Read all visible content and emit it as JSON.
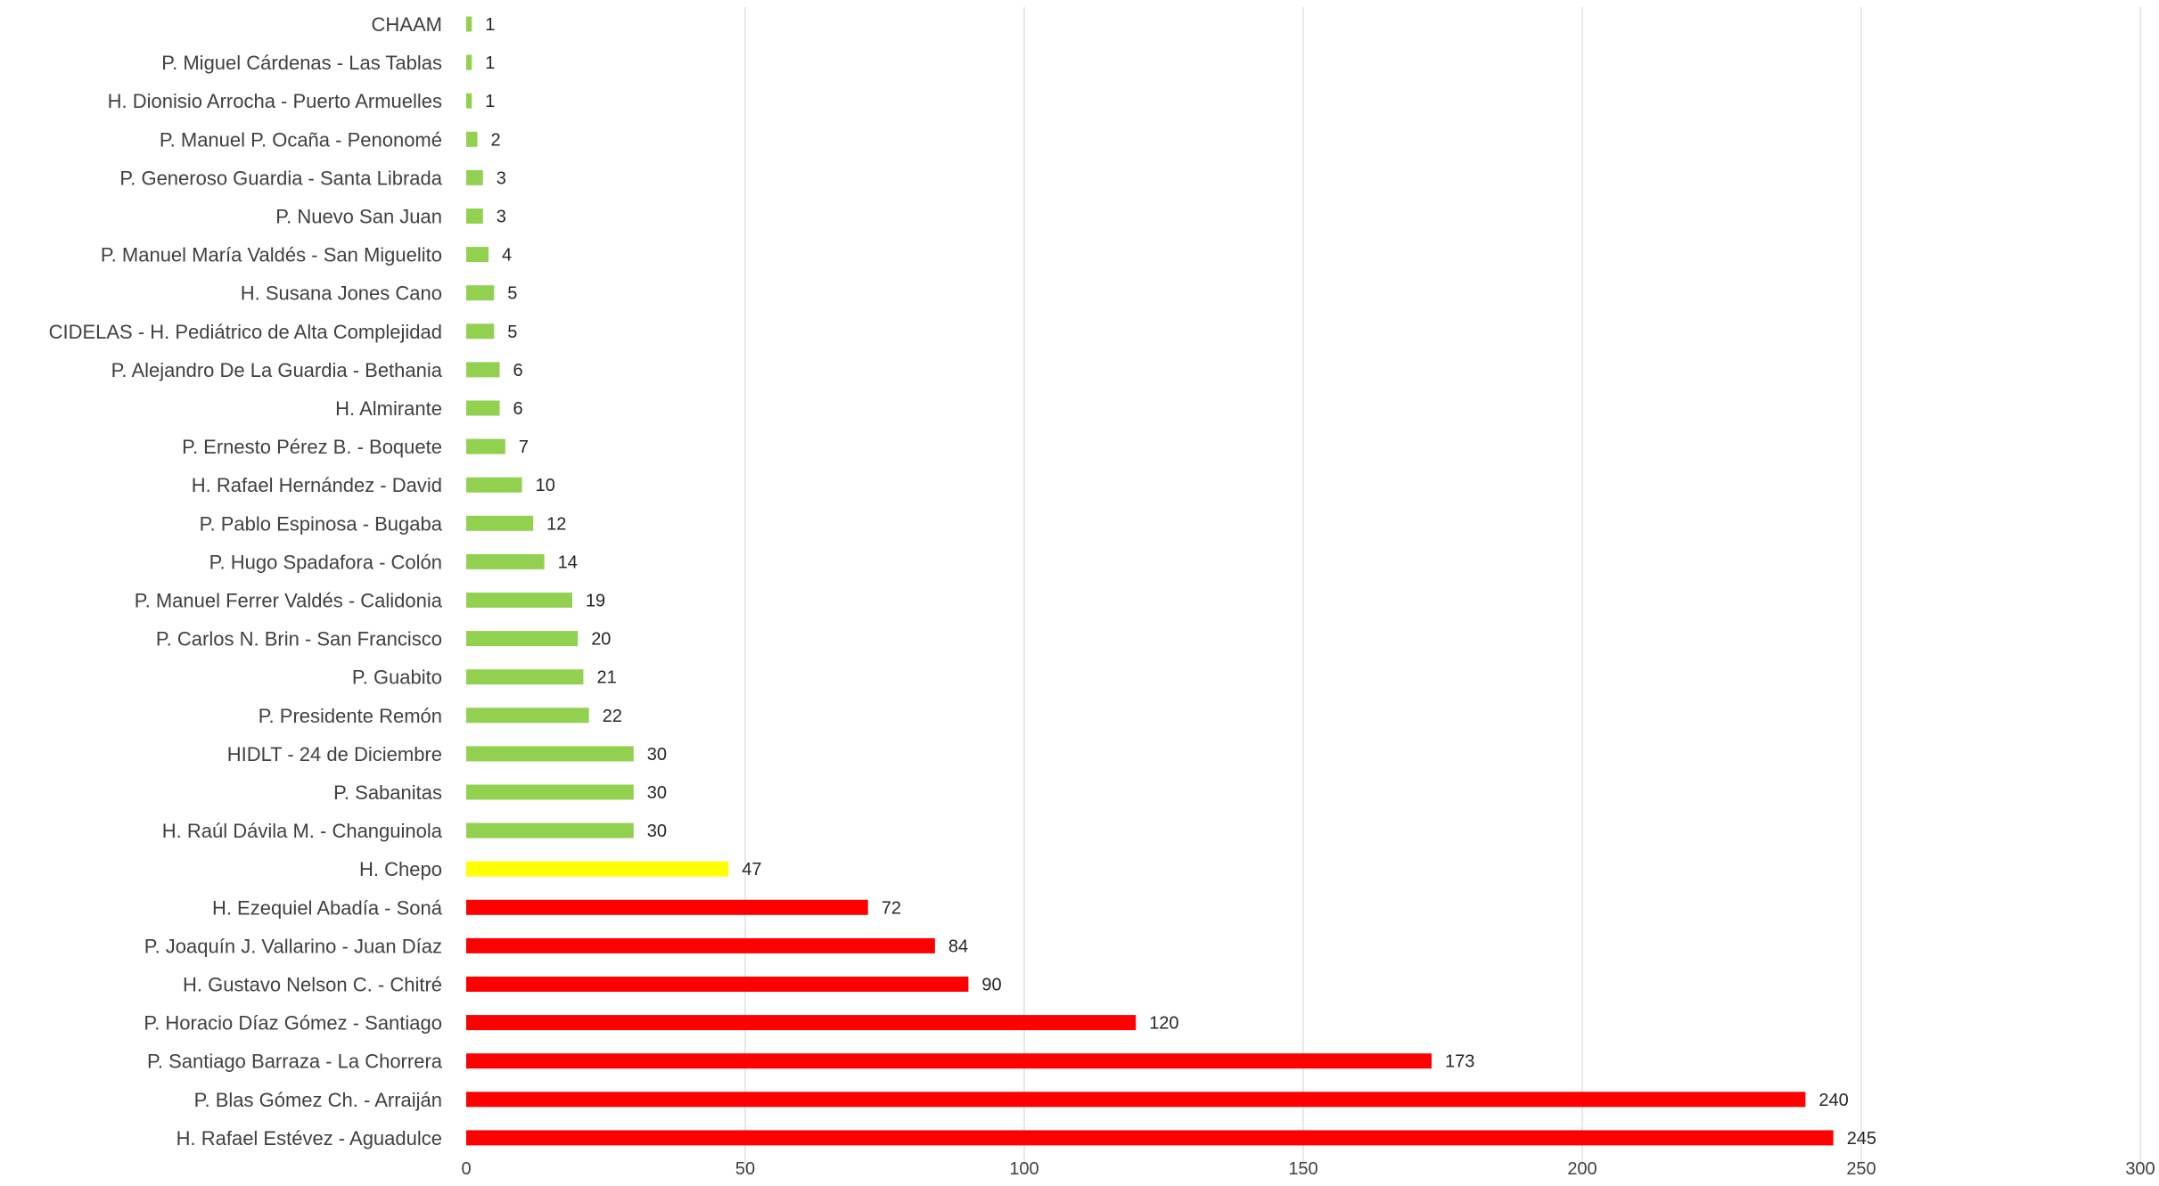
{
  "chart_data": {
    "type": "bar",
    "orientation": "horizontal",
    "categories": [
      "CHAAM",
      "P. Miguel Cárdenas - Las Tablas",
      "H. Dionisio Arrocha - Puerto Armuelles",
      "P. Manuel P. Ocaña - Penonomé",
      "P. Generoso Guardia - Santa Librada",
      "P. Nuevo San Juan",
      "P. Manuel María Valdés - San Miguelito",
      "H. Susana Jones Cano",
      "CIDELAS - H. Pediátrico de Alta Complejidad",
      "P. Alejandro De La Guardia - Bethania",
      "H. Almirante",
      "P. Ernesto Pérez B. - Boquete",
      "H. Rafael Hernández  - David",
      "P. Pablo Espinosa - Bugaba",
      "P. Hugo Spadafora - Colón",
      "P. Manuel Ferrer Valdés - Calidonia",
      "P. Carlos N. Brin - San Francisco",
      "P. Guabito",
      "P. Presidente Remón",
      "HIDLT - 24 de Diciembre",
      "P. Sabanitas",
      "H. Raúl Dávila M. - Changuinola",
      "H. Chepo",
      "H. Ezequiel Abadía - Soná",
      "P. Joaquín J. Vallarino - Juan Díaz",
      "H. Gustavo Nelson C. - Chitré",
      "P. Horacio Díaz Gómez - Santiago",
      "P. Santiago Barraza - La Chorrera",
      "P. Blas Gómez Ch. - Arraiján",
      "H. Rafael Estévez - Aguadulce"
    ],
    "values": [
      1,
      1,
      1,
      2,
      3,
      3,
      4,
      5,
      5,
      6,
      6,
      7,
      10,
      12,
      14,
      19,
      20,
      21,
      22,
      30,
      30,
      30,
      47,
      72,
      84,
      90,
      120,
      173,
      240,
      245
    ],
    "bar_colors": [
      "#92d050",
      "#92d050",
      "#92d050",
      "#92d050",
      "#92d050",
      "#92d050",
      "#92d050",
      "#92d050",
      "#92d050",
      "#92d050",
      "#92d050",
      "#92d050",
      "#92d050",
      "#92d050",
      "#92d050",
      "#92d050",
      "#92d050",
      "#92d050",
      "#92d050",
      "#92d050",
      "#92d050",
      "#92d050",
      "#ffff00",
      "#ff0000",
      "#ff0000",
      "#ff0000",
      "#ff0000",
      "#ff0000",
      "#ff0000",
      "#ff0000"
    ],
    "xlim": [
      0,
      300
    ],
    "xticks": [
      0,
      50,
      100,
      150,
      200,
      250,
      300
    ],
    "grid": "vertical",
    "title": "",
    "xlabel": "",
    "ylabel": ""
  }
}
